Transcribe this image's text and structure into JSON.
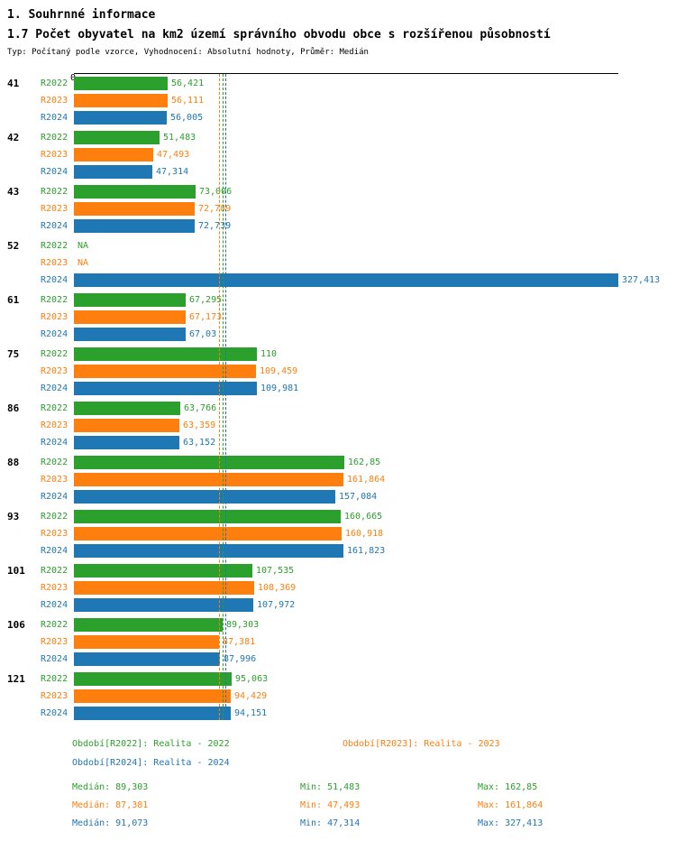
{
  "header": {
    "title": "1. Souhrnné informace",
    "subtitle": "1.7 Počet obyvatel na km2 území správního obvodu obce s rozšířenou působností",
    "meta": "Typ: Počítaný podle vzorce, Vyhodnocení: Absolutní hodnoty, Průměr: Medián"
  },
  "chart_data": {
    "type": "bar",
    "orientation": "horizontal",
    "title": "1.7 Počet obyvatel na km2 území správního obvodu obce s rozšířenou působností",
    "xlabel": "",
    "ylabel": "",
    "xlim": [
      0,
      327.413
    ],
    "axis_zero_label": "0",
    "grid": false,
    "legend_position": "bottom",
    "median_lines": true,
    "categories": [
      "41",
      "42",
      "43",
      "52",
      "61",
      "75",
      "86",
      "88",
      "93",
      "101",
      "106",
      "121"
    ],
    "series": [
      {
        "name": "R2022",
        "legend_label": "Období[R2022]: Realita - 2022",
        "color": "#2ca02c",
        "values": [
          56.421,
          51.483,
          73.006,
          null,
          67.295,
          110,
          63.766,
          162.85,
          160.665,
          107.535,
          89.303,
          95.063
        ],
        "value_labels": [
          "56,421",
          "51,483",
          "73,006",
          "NA",
          "67,295",
          "110",
          "63,766",
          "162,85",
          "160,665",
          "107,535",
          "89,303",
          "95,063"
        ],
        "median": 89.303,
        "min": 51.483,
        "max": 162.85
      },
      {
        "name": "R2023",
        "legend_label": "Období[R2023]: Realita - 2023",
        "color": "#ff7f0e",
        "values": [
          56.111,
          47.493,
          72.789,
          null,
          67.173,
          109.459,
          63.359,
          161.864,
          160.918,
          108.369,
          87.381,
          94.429
        ],
        "value_labels": [
          "56,111",
          "47,493",
          "72,789",
          "NA",
          "67,173",
          "109,459",
          "63,359",
          "161,864",
          "160,918",
          "108,369",
          "87,381",
          "94,429"
        ],
        "median": 87.381,
        "min": 47.493,
        "max": 161.864
      },
      {
        "name": "R2024",
        "legend_label": "Období[R2024]: Realita - 2024",
        "color": "#1f77b4",
        "values": [
          56.005,
          47.314,
          72.739,
          327.413,
          67.03,
          109.981,
          63.152,
          157.084,
          161.823,
          107.972,
          87.996,
          94.151
        ],
        "value_labels": [
          "56,005",
          "47,314",
          "72,739",
          "327,413",
          "67,03",
          "109,981",
          "63,152",
          "157,084",
          "161,823",
          "107,972",
          "87,996",
          "94,151"
        ],
        "median": 91.073,
        "min": 47.314,
        "max": 327.413
      }
    ]
  },
  "legend": {
    "items": [
      {
        "label": "Období[R2022]: Realita - 2022",
        "color": "#2ca02c"
      },
      {
        "label": "Období[R2023]: Realita - 2023",
        "color": "#ff7f0e"
      },
      {
        "label": "Období[R2024]: Realita - 2024",
        "color": "#1f77b4"
      }
    ]
  },
  "stats": {
    "rows": [
      {
        "median": "Medián: 89,303",
        "min": "Min: 51,483",
        "max": "Max: 162,85",
        "color": "#2ca02c"
      },
      {
        "median": "Medián: 87,381",
        "min": "Min: 47,493",
        "max": "Max: 161,864",
        "color": "#ff7f0e"
      },
      {
        "median": "Medián: 91,073",
        "min": "Min: 47,314",
        "max": "Max: 327,413",
        "color": "#1f77b4"
      }
    ]
  }
}
